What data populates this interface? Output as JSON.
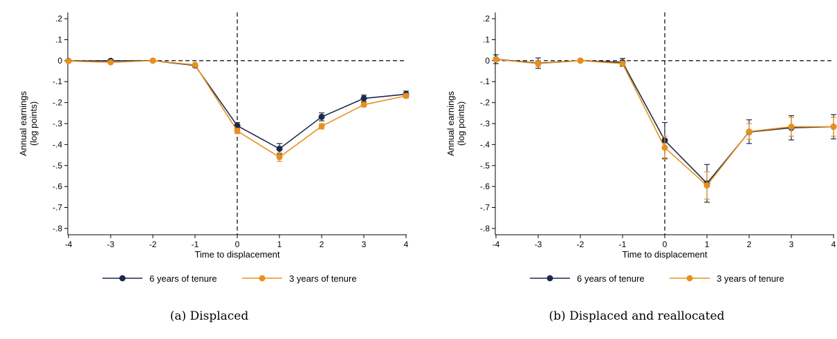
{
  "chart_data": [
    {
      "type": "line",
      "caption": "(a) Displaced",
      "xlabel": "Time to displacement",
      "ylabel_lines": [
        "Annual earnings",
        "(log points)"
      ],
      "x": [
        -4,
        -3,
        -2,
        -1,
        0,
        1,
        2,
        3,
        4
      ],
      "xticks": [
        "-4",
        "-3",
        "-2",
        "-1",
        "0",
        "1",
        "2",
        "3",
        "4"
      ],
      "yticks": [
        ".2",
        ".1",
        "0",
        "-.1",
        "-.2",
        "-.3",
        "-.4",
        "-.5",
        "-.6",
        "-.7",
        "-.8"
      ],
      "ytick_values": [
        0.2,
        0.1,
        0,
        -0.1,
        -0.2,
        -0.3,
        -0.4,
        -0.5,
        -0.6,
        -0.7,
        -0.8
      ],
      "xlim": [
        -4,
        4
      ],
      "ylim": [
        -0.83,
        0.23
      ],
      "reference_lines": {
        "x": 0,
        "y": 0
      },
      "series": [
        {
          "name": "6 years of tenure",
          "color": "#1a2a4a",
          "values": [
            -0.001,
            -0.001,
            0.0,
            -0.023,
            -0.31,
            -0.42,
            -0.268,
            -0.18,
            -0.16
          ],
          "ci_low": [
            -0.006,
            -0.007,
            -0.002,
            -0.03,
            -0.325,
            -0.445,
            -0.287,
            -0.196,
            -0.175
          ],
          "ci_high": [
            0.004,
            0.005,
            0.002,
            -0.016,
            -0.295,
            -0.395,
            -0.249,
            -0.164,
            -0.145
          ]
        },
        {
          "name": "3 years of tenure",
          "color": "#e8901c",
          "values": [
            -0.002,
            -0.008,
            0.0,
            -0.02,
            -0.335,
            -0.46,
            -0.313,
            -0.21,
            -0.168
          ],
          "ci_low": [
            -0.006,
            -0.013,
            -0.002,
            -0.026,
            -0.348,
            -0.48,
            -0.326,
            -0.22,
            -0.178
          ],
          "ci_high": [
            0.002,
            -0.003,
            0.002,
            -0.014,
            -0.322,
            -0.44,
            -0.3,
            -0.2,
            -0.158
          ]
        }
      ]
    },
    {
      "type": "line",
      "caption": "(b) Displaced and reallocated",
      "xlabel": "Time to displacement",
      "ylabel_lines": [
        "Annual earnings",
        "(log points)"
      ],
      "x": [
        -4,
        -3,
        -2,
        -1,
        0,
        1,
        2,
        3,
        4
      ],
      "xticks": [
        "-4",
        "-3",
        "-2",
        "-1",
        "0",
        "1",
        "2",
        "3",
        "4"
      ],
      "yticks": [
        ".2",
        ".1",
        "0",
        "-.1",
        "-.2",
        "-.3",
        "-.4",
        "-.5",
        "-.6",
        "-.7",
        "-.8"
      ],
      "ytick_values": [
        0.2,
        0.1,
        0,
        -0.1,
        -0.2,
        -0.3,
        -0.4,
        -0.5,
        -0.6,
        -0.7,
        -0.8
      ],
      "xlim": [
        -4,
        4
      ],
      "ylim": [
        -0.83,
        0.23
      ],
      "reference_lines": {
        "x": 0,
        "y": 0
      },
      "series": [
        {
          "name": "6 years of tenure",
          "color": "#1a2a4a",
          "values": [
            0.007,
            -0.012,
            0.0,
            -0.008,
            -0.38,
            -0.585,
            -0.34,
            -0.32,
            -0.315
          ],
          "ci_low": [
            -0.014,
            -0.037,
            -0.004,
            -0.027,
            -0.465,
            -0.675,
            -0.395,
            -0.378,
            -0.373
          ],
          "ci_high": [
            0.028,
            0.013,
            0.004,
            0.011,
            -0.295,
            -0.495,
            -0.282,
            -0.262,
            -0.257
          ]
        },
        {
          "name": "3 years of tenure",
          "color": "#e8901c",
          "values": [
            0.006,
            -0.014,
            0.0,
            -0.014,
            -0.415,
            -0.595,
            -0.338,
            -0.315,
            -0.315
          ],
          "ci_low": [
            -0.002,
            -0.028,
            -0.003,
            -0.024,
            -0.47,
            -0.66,
            -0.375,
            -0.36,
            -0.36
          ],
          "ci_high": [
            0.014,
            0.0,
            0.003,
            -0.004,
            -0.36,
            -0.53,
            -0.3,
            -0.27,
            -0.27
          ]
        }
      ]
    }
  ]
}
